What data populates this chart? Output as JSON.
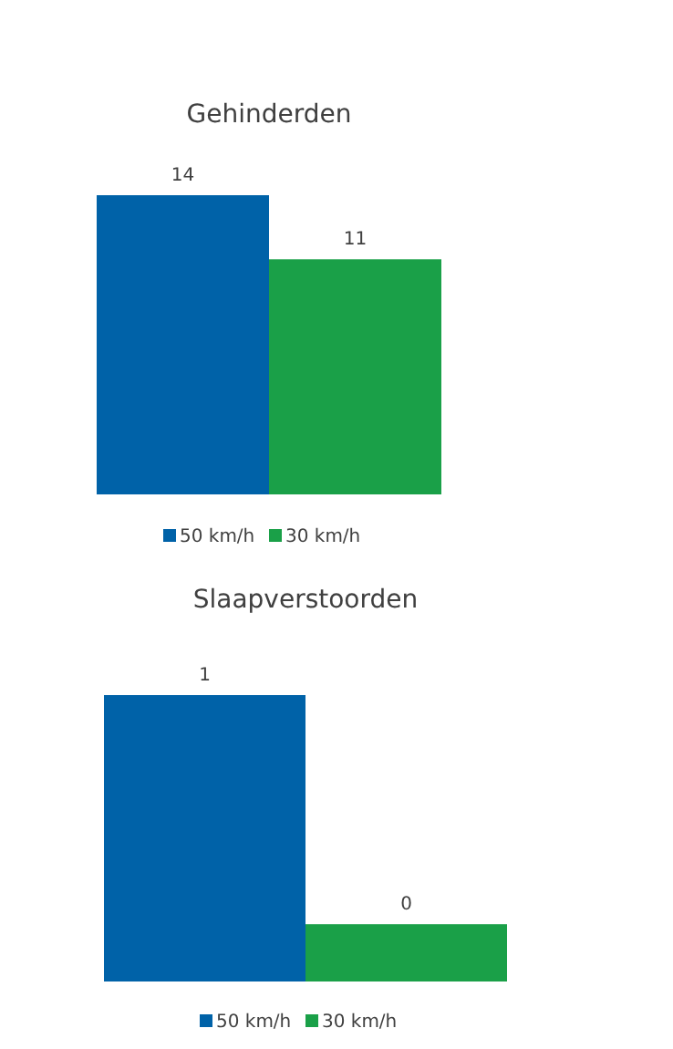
{
  "chart_data": [
    {
      "type": "bar",
      "title": "Gehinderden",
      "categories": [
        null
      ],
      "series": [
        {
          "name": "50 km/h",
          "color": "#0062a8",
          "values": [
            14
          ]
        },
        {
          "name": "30 km/h",
          "color": "#1aa048",
          "values": [
            11
          ]
        }
      ],
      "data_labels": true,
      "legend": "bottom"
    },
    {
      "type": "bar",
      "title": "Slaapverstoorden",
      "categories": [
        null
      ],
      "series": [
        {
          "name": "50 km/h",
          "color": "#0062a8",
          "values": [
            1
          ],
          "value_labels": [
            "1"
          ]
        },
        {
          "name": "30 km/h",
          "color": "#1aa048",
          "values": [
            0.2
          ],
          "value_labels": [
            "0"
          ]
        }
      ],
      "legend": "bottom"
    }
  ]
}
